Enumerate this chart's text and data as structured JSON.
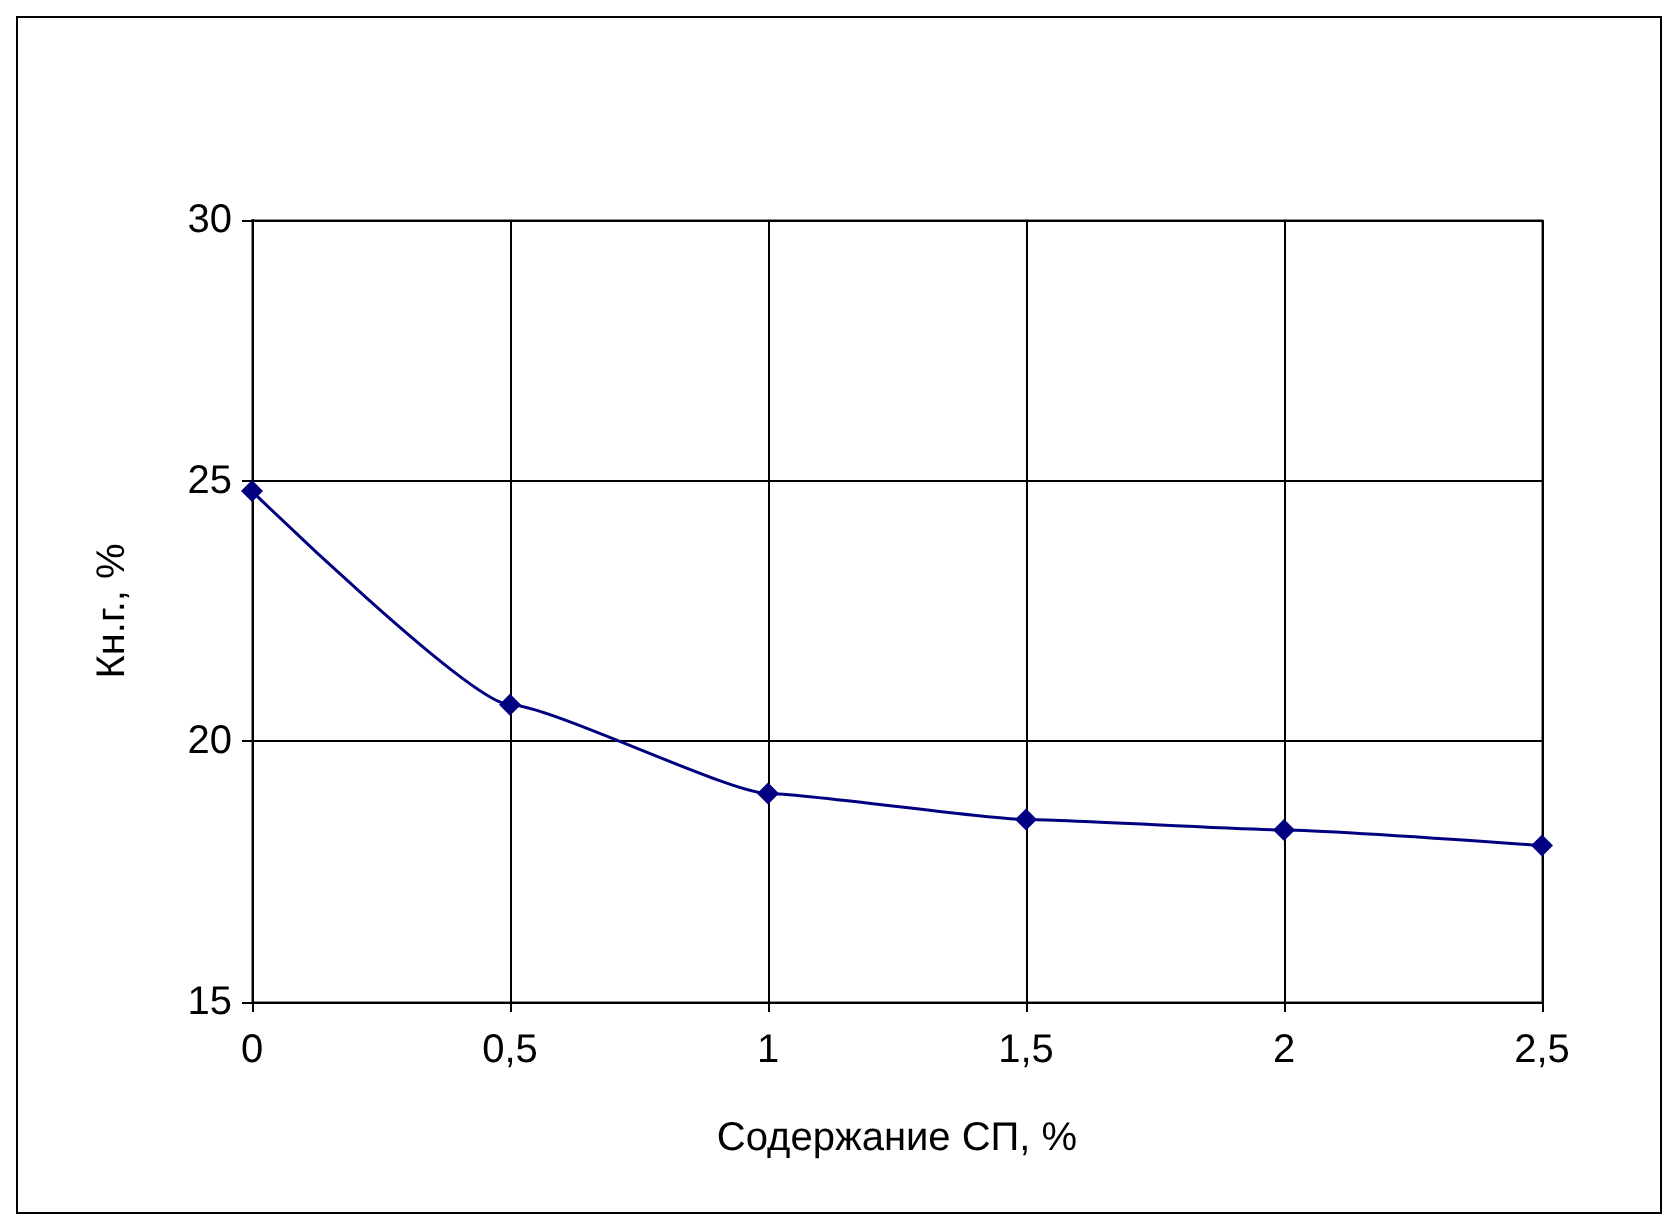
{
  "chart_data": {
    "type": "line",
    "xlabel": "Содержание СП, %",
    "ylabel": "Кн.г., %",
    "x": [
      0,
      0.5,
      1,
      1.5,
      2,
      2.5
    ],
    "series": [
      {
        "color": "#000080",
        "values": [
          24.8,
          20.7,
          19.0,
          18.5,
          18.3,
          18.0
        ]
      }
    ],
    "xlim": [
      0,
      2.5
    ],
    "xticks": [
      {
        "value": 0,
        "label": "0"
      },
      {
        "value": 0.5,
        "label": "0,5"
      },
      {
        "value": 1,
        "label": "1"
      },
      {
        "value": 1.5,
        "label": "1,5"
      },
      {
        "value": 2,
        "label": "2"
      },
      {
        "value": 2.5,
        "label": "2,5"
      }
    ],
    "ylim": [
      15,
      30
    ],
    "yticks": [
      15,
      20,
      25,
      30
    ],
    "grid": true,
    "marker": "diamond",
    "line_style": "solid"
  }
}
